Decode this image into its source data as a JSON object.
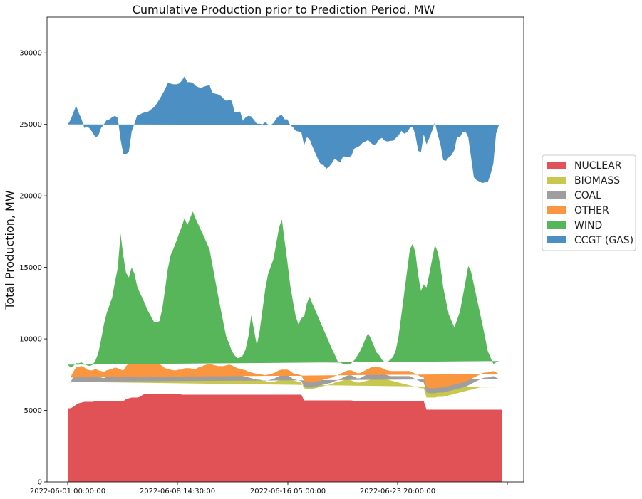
{
  "chart_data": {
    "type": "area",
    "stacked": true,
    "title": "Cumulative Production prior to Prediction Period, MW",
    "xlabel": "",
    "ylabel": "Total Production, MW",
    "ylim": [
      0,
      32500
    ],
    "yticks": [
      0,
      5000,
      10000,
      15000,
      20000,
      25000,
      30000
    ],
    "xtick_labels": [
      "2022-06-01 00:00:00",
      "2022-06-08 14:30:00",
      "2022-06-16 05:00:00",
      "2022-06-23 20:00:00",
      ""
    ],
    "grid": false,
    "legend_position": "right",
    "x_start": "2022-06-01 00:00:00",
    "x_step": "6h",
    "series": [
      {
        "name": "NUCLEAR",
        "color": "#e05255",
        "values": [
          5150,
          5150,
          5250,
          5400,
          5500,
          5550,
          5600,
          5600,
          5600,
          5600,
          5650,
          5650,
          5650,
          5650,
          5650,
          5650,
          5650,
          5650,
          5650,
          5650,
          5650,
          5800,
          5850,
          5900,
          5900,
          5900,
          5950,
          6100,
          6150,
          6150,
          6150,
          6150,
          6150,
          6150,
          6150,
          6150,
          6150,
          6150,
          6150,
          6150,
          6150,
          6100,
          6100,
          6100,
          6100,
          6100,
          6100,
          6100,
          6100,
          6100,
          6100,
          6100,
          6100,
          6100,
          6100,
          6100,
          6100,
          6100,
          6100,
          6100,
          6100,
          6100,
          6100,
          6100,
          6100,
          6100,
          6100,
          6100,
          6100,
          6100,
          6100,
          6100,
          6100,
          6100,
          6100,
          6100,
          6100,
          6100,
          6100,
          6100,
          6100,
          6100,
          6100,
          6100,
          6100,
          5700,
          5700,
          5700,
          5700,
          5700,
          5700,
          5700,
          5700,
          5700,
          5700,
          5700,
          5700,
          5700,
          5700,
          5700,
          5700,
          5700,
          5700,
          5650,
          5650,
          5650,
          5650,
          5650,
          5650,
          5650,
          5650,
          5650,
          5650,
          5650,
          5650,
          5650,
          5650,
          5650,
          5650,
          5650,
          5650,
          5650,
          5650,
          5650,
          5650,
          5650,
          5650,
          5650,
          5650,
          5050,
          5050,
          5050,
          5050,
          5050,
          5050,
          5050,
          5050,
          5050,
          5050,
          5050,
          5050,
          5050,
          5050,
          5050,
          5050,
          5050,
          5050,
          5050,
          5050,
          5050,
          5050,
          5050,
          5050,
          5050,
          5050,
          5050,
          5050
        ]
      },
      {
        "name": "BIOMASS",
        "color": "#c8c84e",
        "values": [
          1850,
          1800,
          2100,
          2200,
          2150,
          2100,
          2000,
          1900,
          1850,
          1800,
          1800,
          1700,
          1650,
          1600,
          1700,
          1750,
          1800,
          1900,
          1850,
          1750,
          1700,
          1850,
          2000,
          2150,
          2200,
          2300,
          2300,
          2250,
          2250,
          2300,
          2250,
          2100,
          1850,
          1700,
          1600,
          1500,
          1450,
          1400,
          1350,
          1350,
          1400,
          1400,
          1450,
          1450,
          1450,
          1400,
          1400,
          1450,
          1500,
          1600,
          1650,
          1700,
          1650,
          1600,
          1550,
          1550,
          1550,
          1600,
          1650,
          1600,
          1500,
          1400,
          1350,
          1300,
          1250,
          1200,
          1150,
          1100,
          1050,
          1050,
          1000,
          950,
          900,
          900,
          900,
          950,
          1000,
          1050,
          1100,
          1150,
          1100,
          1000,
          950,
          900,
          850,
          850,
          800,
          800,
          800,
          850,
          900,
          950,
          1000,
          1050,
          1100,
          1150,
          1250,
          1300,
          1350,
          1400,
          1450,
          1450,
          1400,
          1350,
          1300,
          1300,
          1350,
          1400,
          1450,
          1500,
          1550,
          1600,
          1650,
          1600,
          1550,
          1500,
          1450,
          1400,
          1350,
          1300,
          1250,
          1200,
          1150,
          1100,
          1050,
          1000,
          950,
          900,
          900,
          850,
          850,
          850,
          850,
          900,
          900,
          900,
          950,
          1000,
          1050,
          1100,
          1150,
          1200,
          1250,
          1300,
          1350,
          1400,
          1450,
          1500,
          1550,
          1600,
          1600,
          1550,
          1550,
          1550,
          1550,
          1550
        ]
      },
      {
        "name": "COAL",
        "color": "#9e9e9e",
        "values": [
          0,
          0,
          0,
          0,
          0,
          0,
          0,
          0,
          0,
          0,
          0,
          0,
          0,
          0,
          0,
          0,
          0,
          0,
          0,
          0,
          0,
          0,
          0,
          0,
          0,
          0,
          0,
          0,
          0,
          0,
          0,
          0,
          0,
          0,
          0,
          0,
          0,
          0,
          0,
          0,
          0,
          0,
          0,
          0,
          0,
          0,
          0,
          0,
          0,
          0,
          0,
          0,
          0,
          0,
          0,
          0,
          0,
          0,
          0,
          0,
          0,
          0,
          0,
          0,
          0,
          0,
          0,
          0,
          0,
          0,
          0,
          0,
          100,
          150,
          200,
          250,
          300,
          300,
          250,
          200,
          150,
          100,
          100,
          100,
          100,
          100,
          100,
          100,
          100,
          100,
          100,
          100,
          100,
          100,
          100,
          100,
          100,
          100,
          150,
          200,
          250,
          300,
          350,
          350,
          300,
          300,
          350,
          400,
          450,
          500,
          500,
          450,
          400,
          350,
          300,
          300,
          300,
          350,
          400,
          450,
          500,
          550,
          600,
          650,
          600,
          550,
          500,
          450,
          400,
          350,
          300,
          300,
          300,
          300,
          300,
          300,
          300,
          300,
          300,
          300,
          300,
          300,
          300,
          300,
          350,
          400,
          450,
          500,
          550,
          600,
          650,
          700,
          750,
          800,
          700,
          600,
          550,
          550
        ]
      },
      {
        "name": "OTHER",
        "color": "#f9963f",
        "values": [
          300,
          350,
          350,
          400,
          400,
          450,
          400,
          350,
          350,
          400,
          450,
          450,
          450,
          450,
          450,
          450,
          450,
          450,
          450,
          450,
          450,
          450,
          450,
          450,
          450,
          450,
          450,
          450,
          450,
          450,
          450,
          450,
          450,
          400,
          350,
          300,
          300,
          300,
          300,
          300,
          300,
          350,
          400,
          400,
          400,
          400,
          400,
          450,
          450,
          450,
          450,
          450,
          450,
          450,
          450,
          450,
          450,
          450,
          450,
          450,
          450,
          450,
          450,
          450,
          450,
          400,
          400,
          400,
          400,
          400,
          400,
          400,
          400,
          400,
          400,
          400,
          400,
          400,
          400,
          400,
          400,
          400,
          400,
          400,
          400,
          400,
          400,
          350,
          350,
          350,
          350,
          350,
          350,
          350,
          350,
          350,
          350,
          350,
          350,
          350,
          350,
          350,
          350,
          350,
          350,
          350,
          350,
          350,
          350,
          350,
          350,
          350,
          350,
          350,
          350,
          350,
          350,
          350,
          350,
          350,
          350,
          350,
          350,
          350,
          350,
          350,
          350,
          350,
          350,
          350,
          350,
          350,
          350,
          350,
          350,
          350,
          350,
          350,
          350,
          350,
          350,
          350,
          350,
          350,
          350,
          350,
          350,
          350,
          350,
          350,
          350,
          350,
          350,
          350,
          350,
          350,
          350
        ]
      },
      {
        "name": "WIND",
        "color": "#57b55a",
        "values": [
          900,
          700,
          400,
          300,
          250,
          250,
          250,
          300,
          300,
          400,
          600,
          1200,
          2200,
          3300,
          4000,
          4500,
          5000,
          6000,
          7000,
          9500,
          8000,
          6500,
          6000,
          6500,
          6000,
          5000,
          4500,
          4000,
          3500,
          3000,
          2700,
          2500,
          2700,
          3000,
          4000,
          5500,
          7000,
          8000,
          8500,
          9000,
          9500,
          10000,
          10500,
          10000,
          10500,
          11000,
          10500,
          10000,
          9500,
          9000,
          8500,
          8000,
          7000,
          6000,
          5000,
          4000,
          3000,
          2000,
          1500,
          1000,
          800,
          700,
          800,
          1000,
          1500,
          2500,
          4000,
          3000,
          2000,
          3000,
          4500,
          6000,
          7000,
          7500,
          8000,
          9000,
          10000,
          10500,
          9000,
          7500,
          6000,
          5000,
          4000,
          3500,
          4000,
          4500,
          5500,
          6000,
          5500,
          5000,
          4500,
          4000,
          3500,
          3000,
          2500,
          2000,
          1500,
          1000,
          800,
          600,
          500,
          400,
          500,
          800,
          1200,
          1500,
          1800,
          2200,
          2500,
          2000,
          1500,
          1000,
          800,
          600,
          500,
          600,
          800,
          1000,
          1500,
          2500,
          4000,
          5500,
          7000,
          8500,
          9000,
          8500,
          7000,
          6000,
          6500,
          7000,
          8000,
          9000,
          10000,
          9500,
          8500,
          7000,
          6000,
          5000,
          4500,
          4000,
          4500,
          5000,
          6000,
          7000,
          8000,
          7500,
          6500,
          5500,
          4500,
          3500,
          2500,
          1500,
          1000,
          500,
          700,
          900,
          1100,
          1100
        ]
      },
      {
        "name": "CCGT (GAS)",
        "color": "#4c90c3",
        "values": [
          16800,
          17300,
          17700,
          18000,
          17500,
          17000,
          16500,
          16700,
          16600,
          16200,
          15600,
          15200,
          14800,
          14000,
          13500,
          13000,
          12600,
          11600,
          10500,
          6600,
          7100,
          8300,
          8800,
          9500,
          10500,
          12000,
          12500,
          13000,
          13500,
          14000,
          14500,
          15000,
          15300,
          15500,
          15000,
          14000,
          13000,
          12000,
          11500,
          11000,
          10500,
          10200,
          9900,
          10000,
          9500,
          9000,
          9300,
          9600,
          10000,
          10500,
          11000,
          11500,
          12000,
          13000,
          14000,
          14900,
          15700,
          16500,
          17000,
          17500,
          17000,
          17200,
          17200,
          16400,
          16200,
          15400,
          13900,
          14700,
          15500,
          14500,
          13000,
          11700,
          10500,
          9900,
          9500,
          8700,
          7800,
          7300,
          8500,
          10000,
          11200,
          12200,
          13000,
          13500,
          13000,
          12000,
          11600,
          11000,
          11000,
          11000,
          11000,
          11100,
          11500,
          11700,
          12300,
          13000,
          13700,
          14000,
          14000,
          14500,
          14500,
          14500,
          14500,
          14800,
          14600,
          14400,
          14200,
          13800,
          13500,
          13700,
          14000,
          14600,
          15100,
          15500,
          15500,
          15400,
          15300,
          15100,
          14800,
          14000,
          12800,
          11100,
          9700,
          8500,
          8200,
          8200,
          8700,
          9700,
          10500,
          10000,
          9500,
          9000,
          8600,
          8200,
          8500,
          8900,
          9800,
          11000,
          11600,
          12400,
          12800,
          12200,
          11500,
          10500,
          9000,
          8000,
          7500,
          8200,
          9000,
          9800,
          10800,
          11800,
          12800,
          14000,
          16000,
          16500,
          17000,
          17500,
          17000,
          16500
        ]
      }
    ]
  },
  "legend": {
    "items": [
      {
        "label": "NUCLEAR",
        "color": "#e05255"
      },
      {
        "label": "BIOMASS",
        "color": "#c8c84e"
      },
      {
        "label": "COAL",
        "color": "#9e9e9e"
      },
      {
        "label": "OTHER",
        "color": "#f9963f"
      },
      {
        "label": "WIND",
        "color": "#57b55a"
      },
      {
        "label": "CCGT (GAS)",
        "color": "#4c90c3"
      }
    ]
  }
}
